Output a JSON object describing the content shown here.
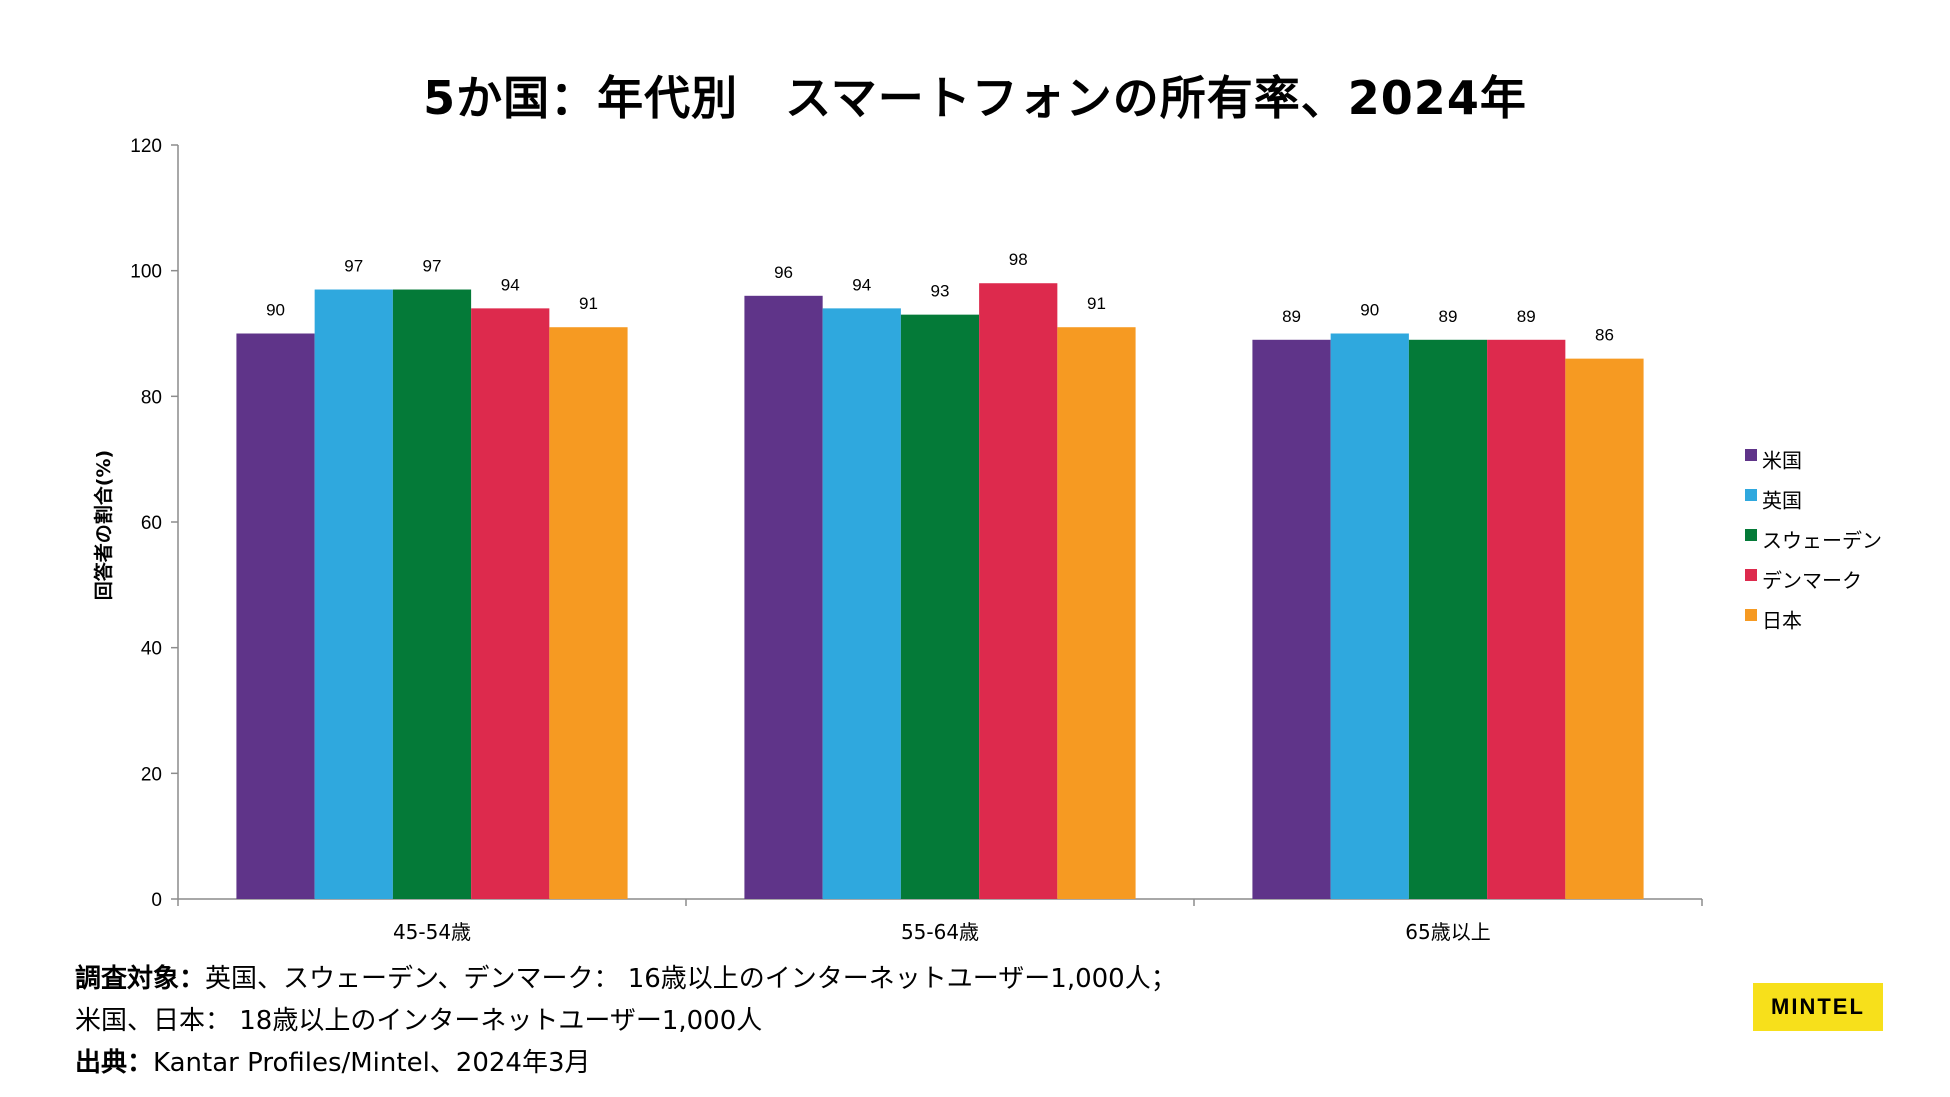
{
  "chart_data": {
    "type": "bar",
    "title": "5か国：年代別　スマートフォンの所有率、2024年",
    "xlabel": "",
    "ylabel": "回答者の割合(%)",
    "ylim": [
      0,
      120
    ],
    "yticks": [
      0,
      20,
      40,
      60,
      80,
      100,
      120
    ],
    "grid": false,
    "legend_position": "right",
    "categories": [
      "45-54歳",
      "55-64歳",
      "65歳以上"
    ],
    "series": [
      {
        "name": "米国",
        "color": "#5f3489",
        "values": [
          90,
          96,
          89
        ]
      },
      {
        "name": "英国",
        "color": "#2fa8de",
        "values": [
          97,
          94,
          90
        ]
      },
      {
        "name": "スウェーデン",
        "color": "#047a38",
        "values": [
          97,
          93,
          89
        ]
      },
      {
        "name": "デンマーク",
        "color": "#dd2a4d",
        "values": [
          94,
          98,
          89
        ]
      },
      {
        "name": "日本",
        "color": "#f69a22",
        "values": [
          91,
          91,
          86
        ]
      }
    ]
  },
  "footer": {
    "survey_label": "調査対象：",
    "survey_line1": "英国、スウェーデン、デンマーク： 16歳以上のインターネットユーザー1,000人；",
    "survey_line2": "米国、日本： 18歳以上のインターネットユーザー1,000人",
    "source_label": "出典：",
    "source_text": "Kantar Profiles/Mintel、2024年3月"
  },
  "logo": {
    "text": "MINTEL",
    "color": "#f7e01b"
  }
}
